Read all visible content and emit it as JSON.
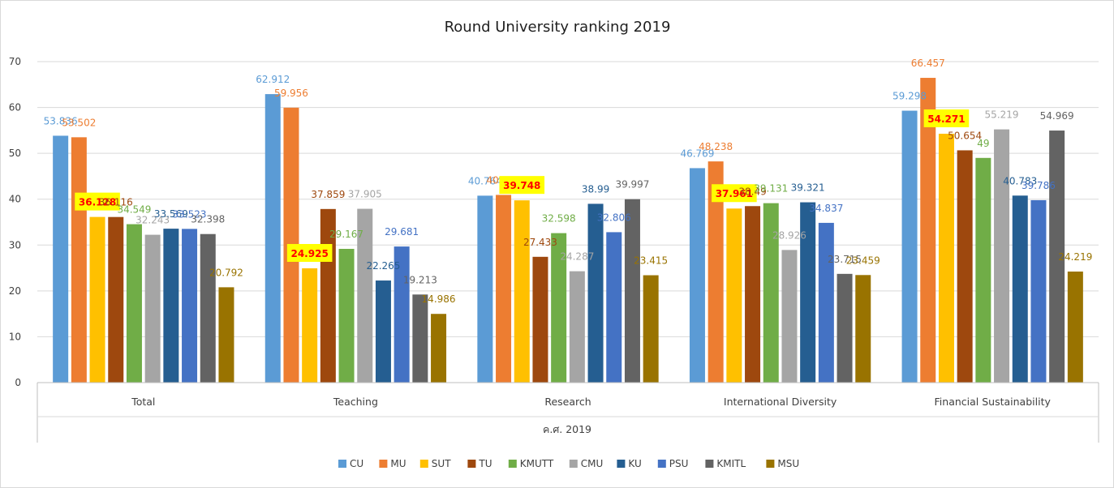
{
  "chart_data": {
    "type": "bar",
    "title": "Round University ranking 2019",
    "xlabel": "ค.ศ. 2019",
    "ylabel": "",
    "ylim": [
      0,
      70
    ],
    "yticks": [
      "0",
      "10",
      "20",
      "30",
      "40",
      "50",
      "60",
      "70"
    ],
    "categories": [
      "Total",
      "Teaching",
      "Research",
      "International Diversity",
      "Financial Sustainability"
    ],
    "series": [
      {
        "name": "CU",
        "color": "#5b9bd5",
        "values": [
          53.836,
          62.912,
          40.764,
          46.769,
          59.298
        ],
        "labels": [
          "53.836",
          "62.912",
          "40.764",
          "46.769",
          "59.298"
        ]
      },
      {
        "name": "MU",
        "color": "#ed7d31",
        "values": [
          53.502,
          59.956,
          40.934,
          48.238,
          66.457
        ],
        "labels": [
          "53.502",
          "59.956",
          "40.934",
          "48.238",
          "66.457"
        ]
      },
      {
        "name": "SUT",
        "color": "#ffc000",
        "values": [
          36.128,
          24.925,
          39.748,
          37.961,
          54.271
        ],
        "labels": [
          "36.128",
          "24.925",
          "39.748",
          "37.961",
          "54.271"
        ]
      },
      {
        "name": "TU",
        "color": "#9e480e",
        "values": [
          36.116,
          37.859,
          27.433,
          38.49,
          50.654
        ],
        "labels": [
          "36.116",
          "37.859",
          "27.433",
          "38.49",
          "50.654"
        ]
      },
      {
        "name": "KMUTT",
        "color": "#70ad47",
        "values": [
          34.549,
          29.167,
          32.598,
          39.131,
          49
        ],
        "labels": [
          "34.549",
          "29.167",
          "32.598",
          "39.131",
          "49"
        ]
      },
      {
        "name": "CMU",
        "color": "#a5a5a5",
        "values": [
          32.243,
          37.905,
          24.287,
          28.926,
          55.219
        ],
        "labels": [
          "32.243",
          "37.905",
          "24.287",
          "28.926",
          "55.219"
        ]
      },
      {
        "name": "KU",
        "color": "#255e91",
        "values": [
          33.569,
          22.265,
          38.99,
          39.321,
          40.783
        ],
        "labels": [
          "33.569",
          "22.265",
          "38.99",
          "39.321",
          "40.783"
        ]
      },
      {
        "name": "PSU",
        "color": "#4472c4",
        "values": [
          33.523,
          29.681,
          32.806,
          34.837,
          39.786
        ],
        "labels": [
          "33.523",
          "29.681",
          "32.806",
          "34.837",
          "39.786"
        ]
      },
      {
        "name": "KMITL",
        "color": "#636363",
        "values": [
          32.398,
          19.213,
          39.997,
          23.715,
          54.969
        ],
        "labels": [
          "32.398",
          "19.213",
          "39.997",
          "23.715",
          "54.969"
        ]
      },
      {
        "name": "MSU",
        "color": "#997300",
        "values": [
          20.792,
          14.986,
          23.415,
          23.459,
          24.219
        ],
        "labels": [
          "20.792",
          "14.986",
          "23.415",
          "23.459",
          "24.219"
        ]
      }
    ],
    "highlighted_series": "SUT",
    "highlight_fill": "#ffff00",
    "highlight_text": "#ff0000",
    "grid": true,
    "legend": "bottom"
  }
}
